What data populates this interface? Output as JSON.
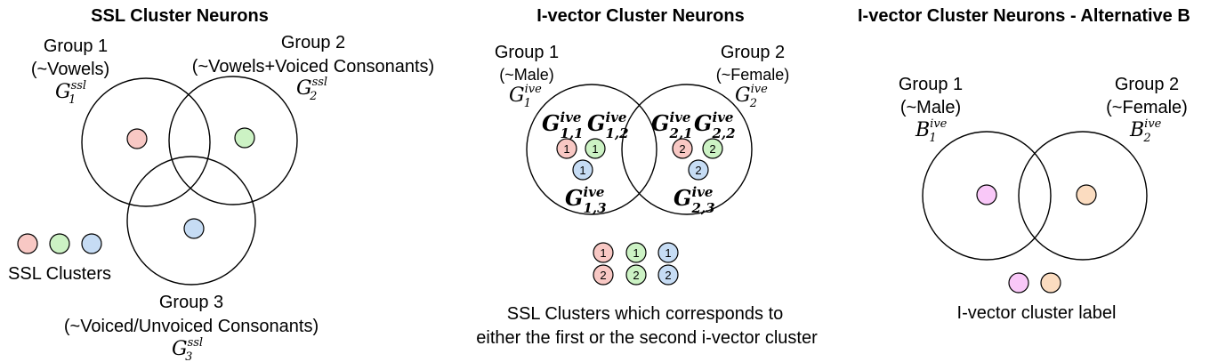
{
  "colors": {
    "red": "#f8c8c4",
    "green": "#ccf2c4",
    "blue": "#c6dcf4",
    "magenta": "#f9c8f8",
    "orange": "#fbdcc0"
  },
  "panel_ssl": {
    "title": "SSL Cluster Neurons",
    "group1": {
      "name": "Group 1",
      "desc": "(~Vowels)",
      "sym": "G",
      "sup": "ssl",
      "sub": "1"
    },
    "group2": {
      "name": "Group 2",
      "desc": "(~Vowels+Voiced Consonants)",
      "sym": "G",
      "sup": "ssl",
      "sub": "2"
    },
    "group3": {
      "name": "Group 3",
      "desc": "(~Voiced/Unvoiced Consonants)",
      "sym": "G",
      "sup": "ssl",
      "sub": "3"
    },
    "legend_label": "SSL Clusters"
  },
  "panel_ivector": {
    "title": "I-vector Cluster Neurons",
    "group1": {
      "name": "Group 1",
      "desc": "(~Male)",
      "sym": "G",
      "sup": "ive",
      "sub": "1"
    },
    "group2": {
      "name": "Group 2",
      "desc": "(~Female)",
      "sym": "G",
      "sup": "ive",
      "sub": "2"
    },
    "sub_labels": {
      "g11": {
        "sym": "G",
        "sup": "ive",
        "sub": "1,1"
      },
      "g12": {
        "sym": "G",
        "sup": "ive",
        "sub": "1,2"
      },
      "g13": {
        "sym": "G",
        "sup": "ive",
        "sub": "1,3"
      },
      "g21": {
        "sym": "G",
        "sup": "ive",
        "sub": "2,1"
      },
      "g22": {
        "sym": "G",
        "sup": "ive",
        "sub": "2,2"
      },
      "g23": {
        "sym": "G",
        "sup": "ive",
        "sub": "2,3"
      }
    },
    "dot_numbers": {
      "one": "1",
      "two": "2"
    },
    "caption_line1": "SSL Clusters which corresponds to",
    "caption_line2": "either the first or the second i-vector cluster"
  },
  "panel_alt": {
    "title": "I-vector Cluster Neurons - Alternative B",
    "group1": {
      "name": "Group 1",
      "desc": "(~Male)",
      "sym": "B",
      "sup": "ive",
      "sub": "1"
    },
    "group2": {
      "name": "Group 2",
      "desc": "(~Female)",
      "sym": "B",
      "sup": "ive",
      "sub": "2"
    },
    "legend_label": "I-vector cluster label"
  }
}
